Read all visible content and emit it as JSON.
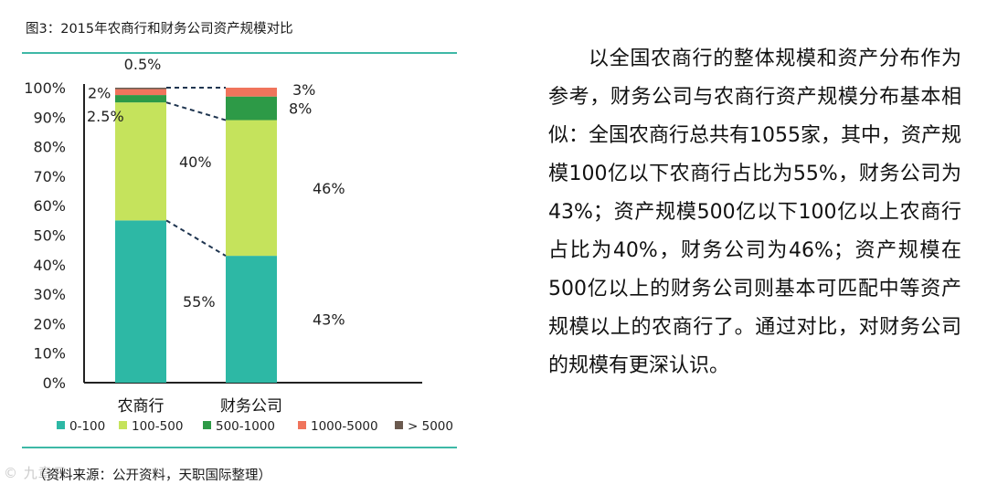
{
  "figure": {
    "title": "图3：2015年农商行和财务公司资产规模对比",
    "source": "（资料来源：公开资料，天职国际整理）",
    "watermark": "© 九章云"
  },
  "chart_data": {
    "type": "bar",
    "stacked": true,
    "categories": [
      "农商行",
      "财务公司"
    ],
    "series": [
      {
        "name": "0-100",
        "color": "#2db8a5",
        "values": [
          55,
          43
        ]
      },
      {
        "name": "100-500",
        "color": "#c5e35c",
        "values": [
          40,
          46
        ]
      },
      {
        "name": "500-1000",
        "color": "#2d9a47",
        "values": [
          2.5,
          8
        ]
      },
      {
        "name": "1000-5000",
        "color": "#f0745c",
        "values": [
          2,
          3
        ]
      },
      {
        "name": "> 5000",
        "color": "#6b5a4f",
        "values": [
          0.5,
          0
        ]
      }
    ],
    "yticks": [
      "0%",
      "10%",
      "20%",
      "30%",
      "40%",
      "50%",
      "60%",
      "70%",
      "80%",
      "90%",
      "100%"
    ],
    "ylim": [
      0,
      100
    ],
    "legend_position": "bottom",
    "data_labels": [
      {
        "category": 0,
        "series": 0,
        "text": "55%"
      },
      {
        "category": 0,
        "series": 1,
        "text": "40%"
      },
      {
        "category": 0,
        "series": 2,
        "text": "2.5%"
      },
      {
        "category": 0,
        "series": 3,
        "text": "2%"
      },
      {
        "category": 0,
        "series": 4,
        "text": "0.5%"
      },
      {
        "category": 1,
        "series": 0,
        "text": "43%"
      },
      {
        "category": 1,
        "series": 1,
        "text": "46%"
      },
      {
        "category": 1,
        "series": 2,
        "text": "8%"
      },
      {
        "category": 1,
        "series": 3,
        "text": "3%"
      }
    ]
  },
  "article": {
    "paragraph": "以全国农商行的整体规模和资产分布作为参考，财务公司与农商行资产规模分布基本相似：全国农商行总共有1055家，其中，资产规模100亿以下农商行占比为55%，财务公司为43%；资产规模500亿以下100亿以上农商行占比为40%，财务公司为46%；资产规模在500亿以上的财务公司则基本可匹配中等资产规模以上的农商行了。通过对比，对财务公司的规模有更深认识。"
  }
}
